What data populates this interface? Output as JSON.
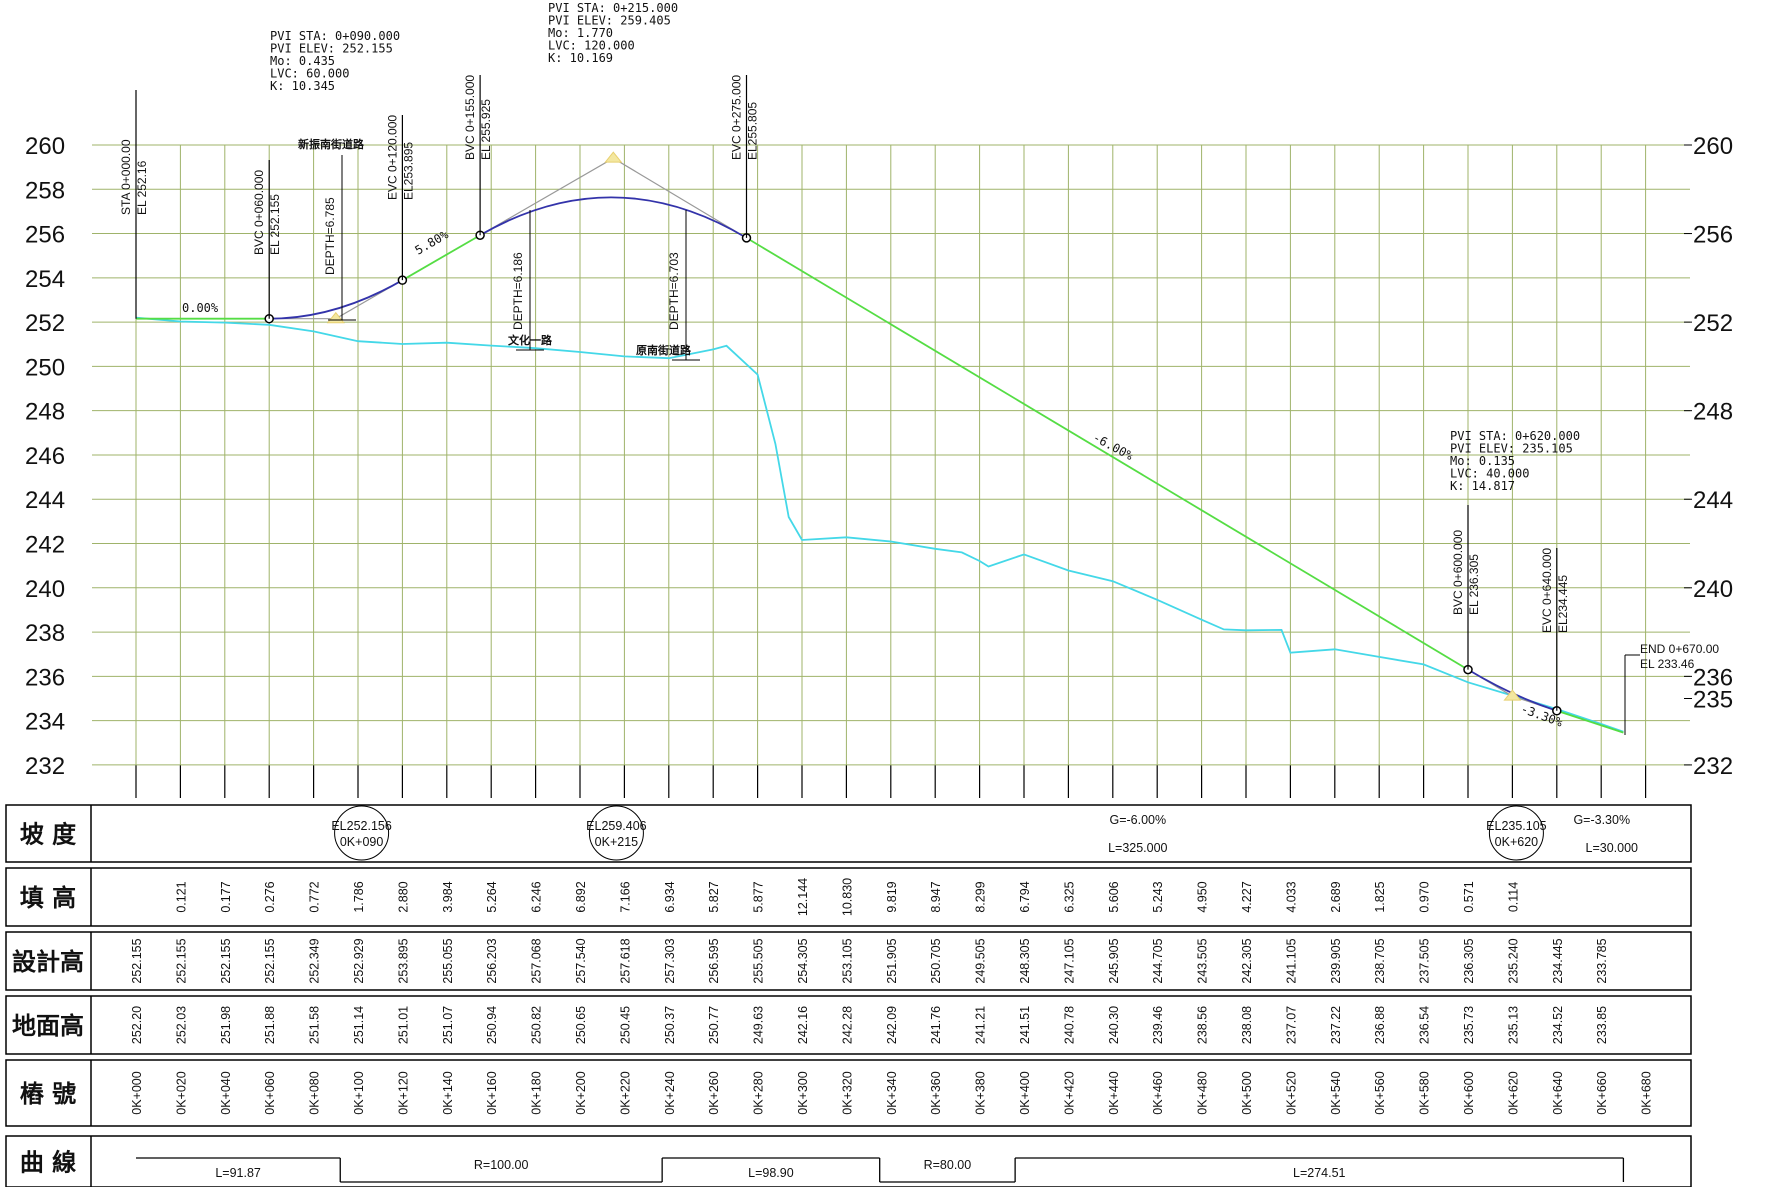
{
  "chart_data": {
    "type": "line",
    "y_axis_ticks": [
      "232",
      "234",
      "236",
      "238",
      "240",
      "242",
      "244",
      "246",
      "248",
      "250",
      "252",
      "254",
      "256",
      "258",
      "260"
    ],
    "right_axis_ticks": [
      "232",
      "235",
      "236",
      "240",
      "244",
      "248",
      "252",
      "256",
      "260"
    ],
    "ylim": [
      232,
      260
    ],
    "xlim_m": [
      0,
      680
    ],
    "design_grade_line": {
      "name": "design profile",
      "color": "#55dd44",
      "points": [
        [
          0,
          252.155
        ],
        [
          60,
          252.155
        ],
        [
          120,
          253.895
        ],
        [
          155,
          255.925
        ],
        [
          275,
          255.805
        ],
        [
          600,
          236.305
        ],
        [
          640,
          234.445
        ],
        [
          670,
          233.46
        ]
      ]
    },
    "vertical_curves": [
      {
        "from": 60,
        "pvi": 90,
        "to": 120,
        "y_from": 252.155,
        "y_pvi": 252.155,
        "y_to": 253.895
      },
      {
        "from": 155,
        "pvi": 215,
        "to": 275,
        "y_from": 255.925,
        "y_pvi": 259.405,
        "y_to": 255.805
      },
      {
        "from": 600,
        "pvi": 620,
        "to": 640,
        "y_from": 236.305,
        "y_pvi": 235.105,
        "y_to": 234.445
      }
    ],
    "ground_line": {
      "name": "ground",
      "color": "#44d8e8",
      "points": [
        [
          0,
          252.2
        ],
        [
          20,
          252.03
        ],
        [
          40,
          251.98
        ],
        [
          60,
          251.88
        ],
        [
          80,
          251.58
        ],
        [
          100,
          251.14
        ],
        [
          120,
          251.01
        ],
        [
          140,
          251.07
        ],
        [
          160,
          250.94
        ],
        [
          180,
          250.82
        ],
        [
          200,
          250.65
        ],
        [
          220,
          250.45
        ],
        [
          240,
          250.37
        ],
        [
          260,
          250.77
        ],
        [
          266,
          250.93
        ],
        [
          280,
          249.63
        ],
        [
          288,
          246.5
        ],
        [
          294,
          243.2
        ],
        [
          300,
          242.16
        ],
        [
          320,
          242.28
        ],
        [
          340,
          242.09
        ],
        [
          360,
          241.76
        ],
        [
          372,
          241.6
        ],
        [
          380,
          241.21
        ],
        [
          384,
          240.96
        ],
        [
          400,
          241.51
        ],
        [
          420,
          240.78
        ],
        [
          440,
          240.3
        ],
        [
          460,
          239.46
        ],
        [
          480,
          238.56
        ],
        [
          490,
          238.12
        ],
        [
          500,
          238.08
        ],
        [
          516,
          238.1
        ],
        [
          520,
          237.07
        ],
        [
          540,
          237.22
        ],
        [
          560,
          236.88
        ],
        [
          580,
          236.54
        ],
        [
          600,
          235.73
        ],
        [
          620,
          235.13
        ],
        [
          640,
          234.52
        ],
        [
          660,
          233.85
        ],
        [
          670,
          233.5
        ]
      ]
    },
    "grade_labels": [
      "0.00%",
      "5.80%",
      "-6.00%",
      "-3.30%"
    ],
    "pvi_blocks": [
      {
        "lines": [
          "PVI  STA:  0+090.000",
          "PVI  ELEV:  252.155",
          "Mo:  0.435",
          "LVC:  60.000",
          "K:  10.345"
        ]
      },
      {
        "lines": [
          "PVI  STA:  0+215.000",
          "PVI  ELEV:  259.405",
          "Mo:  1.770",
          "LVC:  120.000",
          "K:  10.169"
        ]
      },
      {
        "lines": [
          "PVI  STA:  0+620.000",
          "PVI  ELEV:  235.105",
          "Mo:  0.135",
          "LVC:  40.000",
          "K:  14.817"
        ]
      }
    ],
    "station_labels": [
      {
        "sta": 0,
        "lines": [
          "STA  0+000.00",
          "EL  252.16"
        ]
      },
      {
        "sta": 60,
        "lines": [
          "BVC  0+060.000",
          "EL  252.155"
        ]
      },
      {
        "sta": 120,
        "lines": [
          "EVC  0+120.000",
          "EL253.895"
        ]
      },
      {
        "sta": 155,
        "lines": [
          "BVC  0+155.000",
          "EL  255.925"
        ]
      },
      {
        "sta": 275,
        "lines": [
          "EVC  0+275.000",
          "EL255.805"
        ]
      },
      {
        "sta": 600,
        "lines": [
          "BVC  0+600.000",
          "EL  236.305"
        ]
      },
      {
        "sta": 640,
        "lines": [
          "EVC  0+640.000",
          "EL234.445"
        ]
      }
    ],
    "end_label": [
      "END  0+670.00",
      "EL  233.46"
    ],
    "depth_labels": [
      "DEPTH=6.785",
      "DEPTH=6.186",
      "DEPTH=6.703"
    ],
    "road_labels": [
      "新振南街道路",
      "文化一路",
      "原南街道路"
    ]
  },
  "table": {
    "row_headers": [
      "坡  度",
      "填  高",
      "設計高",
      "地面高",
      "樁  號",
      "曲  線"
    ],
    "slope_marks": [
      {
        "sta": 80,
        "lines": [
          "EL252.156",
          "0K+090"
        ]
      },
      {
        "sta": 220,
        "lines": [
          "EL259.406",
          "0K+215"
        ]
      },
      {
        "sta": 620,
        "lines": [
          "EL235.105",
          "0K+620"
        ]
      }
    ],
    "slope_texts": [
      {
        "sta": 440,
        "lines": [
          "G=-6.00%",
          "L=325.000"
        ]
      },
      {
        "sta": 658,
        "lines": [
          "G=-3.30%",
          "L=30.000"
        ]
      }
    ],
    "fill_heights": [
      "",
      "0.121",
      "0.177",
      "0.276",
      "0.772",
      "1.786",
      "2.880",
      "3.984",
      "5.264",
      "6.246",
      "6.892",
      "7.166",
      "6.934",
      "5.827",
      "5.877",
      "12.144",
      "10.830",
      "9.819",
      "8.947",
      "8.299",
      "6.794",
      "6.325",
      "5.606",
      "5.243",
      "4.950",
      "4.227",
      "4.033",
      "2.689",
      "1.825",
      "0.970",
      "0.571",
      "0.114",
      "",
      ""
    ],
    "design_elevations": [
      "252.155",
      "252.155",
      "252.155",
      "252.155",
      "252.349",
      "252.929",
      "253.895",
      "255.055",
      "256.203",
      "257.068",
      "257.540",
      "257.618",
      "257.303",
      "256.595",
      "255.505",
      "254.305",
      "253.105",
      "251.905",
      "250.705",
      "249.505",
      "248.305",
      "247.105",
      "245.905",
      "244.705",
      "243.505",
      "242.305",
      "241.105",
      "239.905",
      "238.705",
      "237.505",
      "236.305",
      "235.240",
      "234.445",
      "233.785"
    ],
    "ground_elevations": [
      "252.20",
      "252.03",
      "251.98",
      "251.88",
      "251.58",
      "251.14",
      "251.01",
      "251.07",
      "250.94",
      "250.82",
      "250.65",
      "250.45",
      "250.37",
      "250.77",
      "249.63",
      "242.16",
      "242.28",
      "242.09",
      "241.76",
      "241.21",
      "241.51",
      "240.78",
      "240.30",
      "239.46",
      "238.56",
      "238.08",
      "237.07",
      "237.22",
      "236.88",
      "236.54",
      "235.73",
      "235.13",
      "234.52",
      "233.85"
    ],
    "stations": [
      "0K+000",
      "0K+020",
      "0K+040",
      "0K+060",
      "0K+080",
      "0K+100",
      "0K+120",
      "0K+140",
      "0K+160",
      "0K+180",
      "0K+200",
      "0K+220",
      "0K+240",
      "0K+260",
      "0K+280",
      "0K+300",
      "0K+320",
      "0K+340",
      "0K+360",
      "0K+380",
      "0K+400",
      "0K+420",
      "0K+440",
      "0K+460",
      "0K+480",
      "0K+500",
      "0K+520",
      "0K+540",
      "0K+560",
      "0K+580",
      "0K+600",
      "0K+620",
      "0K+640",
      "0K+660",
      "0K+680"
    ],
    "curve_segments": [
      {
        "type": "tangent",
        "from": 0,
        "to": 92,
        "label": "L=91.87"
      },
      {
        "type": "curve",
        "from": 92,
        "to": 237,
        "label": "R=100.00"
      },
      {
        "type": "tangent",
        "from": 237,
        "to": 335,
        "label": "L=98.90"
      },
      {
        "type": "curve",
        "from": 335,
        "to": 396,
        "label": "R=80.00"
      },
      {
        "type": "tangent",
        "from": 396,
        "to": 670,
        "label": "L=274.51"
      }
    ]
  }
}
